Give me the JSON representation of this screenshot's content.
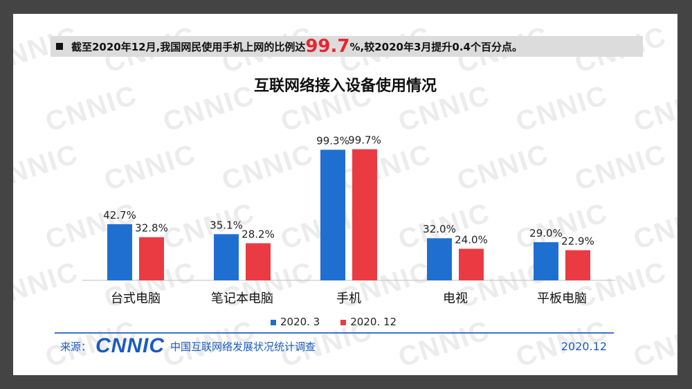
{
  "banner": {
    "prefix": "截至2020年12月,我国网民使用手机上网的比例达",
    "highlight": "99.7",
    "suffix": "%,较2020年3月提升0.4个百分点。"
  },
  "watermark_text": "CNNIC",
  "colors": {
    "series_a": "#1f6fd0",
    "series_b": "#ea3a42",
    "highlight": "#e8262f",
    "brand": "#1a5bbf"
  },
  "chart_data": {
    "type": "bar",
    "title": "互联网络接入设备使用情况",
    "categories": [
      "台式电脑",
      "笔记本电脑",
      "手机",
      "电视",
      "平板电脑"
    ],
    "series": [
      {
        "name": "2020. 3",
        "values": [
          42.7,
          35.1,
          99.3,
          32.0,
          29.0
        ],
        "labels": [
          "42.7%",
          "35.1%",
          "99.3%",
          "32.0%",
          "29.0%"
        ]
      },
      {
        "name": "2020. 12",
        "values": [
          32.8,
          28.2,
          99.7,
          24.0,
          22.9
        ],
        "labels": [
          "32.8%",
          "28.2%",
          "99.7%",
          "24.0%",
          "22.9%"
        ]
      }
    ],
    "ylim": [
      0,
      100
    ],
    "legend": "bottom",
    "grid": false
  },
  "footer": {
    "source_label": "来源：",
    "logo_text": "CNNIC",
    "org_name": "中国互联网络发展状况统计调查",
    "date": "2020.12"
  }
}
